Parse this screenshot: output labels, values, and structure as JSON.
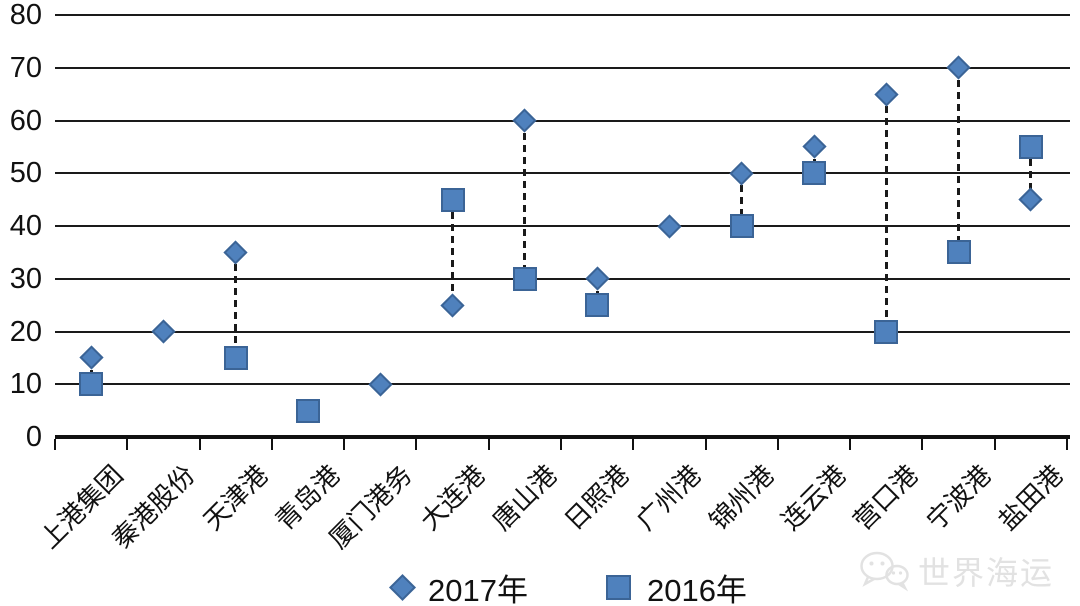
{
  "chart_data": {
    "type": "scatter",
    "title": "",
    "xlabel": "",
    "ylabel": "",
    "categories": [
      "上港集团",
      "秦港股份",
      "天津港",
      "青岛港",
      "厦门港务",
      "大连港",
      "唐山港",
      "日照港",
      "广州港",
      "锦州港",
      "连云港",
      "营口港",
      "宁波港",
      "盐田港"
    ],
    "series": [
      {
        "name": "2017年",
        "marker": "diamond",
        "values": [
          15,
          20,
          35,
          null,
          10,
          25,
          60,
          30,
          40,
          50,
          55,
          65,
          70,
          45
        ]
      },
      {
        "name": "2016年",
        "marker": "square",
        "values": [
          10,
          null,
          15,
          5,
          null,
          45,
          30,
          25,
          null,
          40,
          50,
          20,
          35,
          55
        ]
      }
    ],
    "ylim": [
      0,
      80
    ],
    "yticks": [
      0,
      10,
      20,
      30,
      40,
      50,
      60,
      70,
      80
    ],
    "grid": true,
    "legend_position": "bottom",
    "connector_style": "dashed vertical high-low lines where both years present",
    "marker_color": "#4f81bd",
    "marker_border_color": "#3b6496",
    "grid_color": "#1a1a1a",
    "axis_color": "#111111"
  },
  "watermark": {
    "text": "世界海运"
  }
}
